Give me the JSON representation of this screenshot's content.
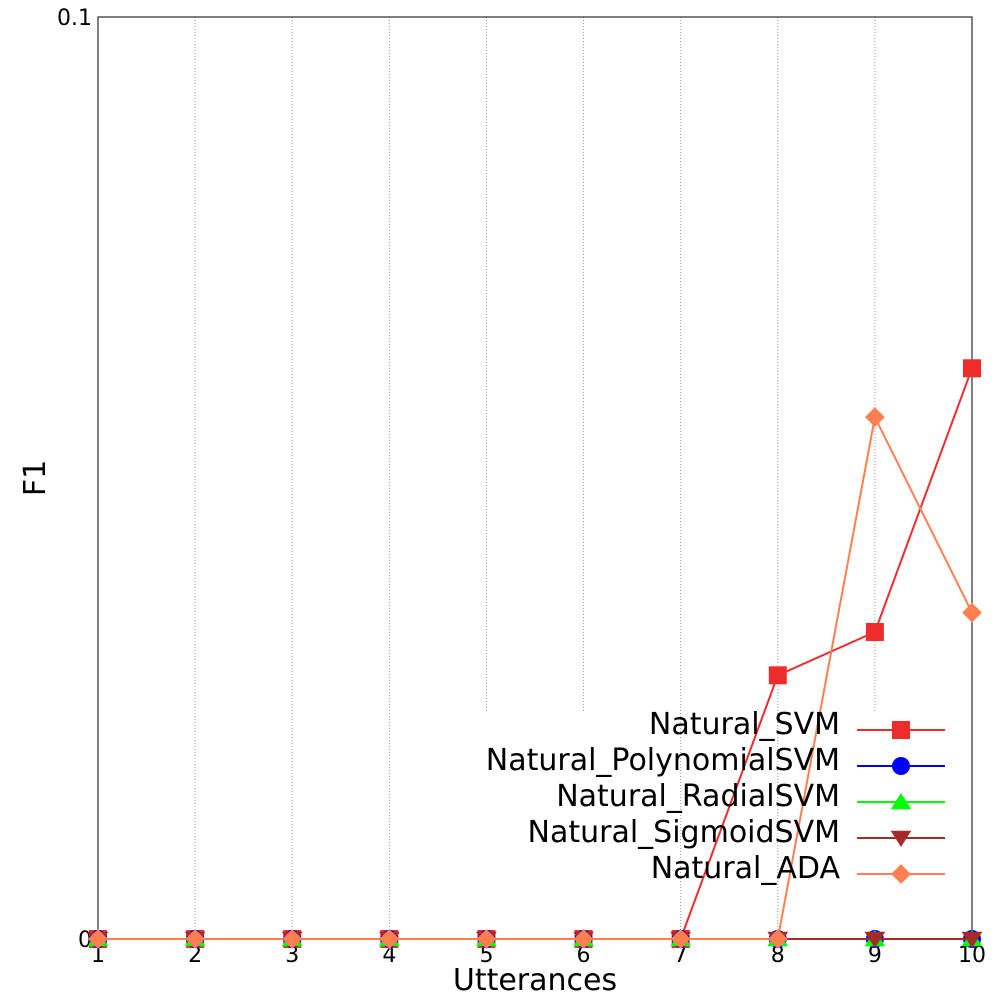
{
  "chart_data": {
    "type": "line",
    "title": "",
    "xlabel": "Utterances",
    "ylabel": "F1",
    "xlim": [
      1,
      10
    ],
    "ylim": [
      0,
      0.1
    ],
    "x": [
      1,
      2,
      3,
      4,
      5,
      6,
      7,
      8,
      9,
      10
    ],
    "x_ticks": [
      "1",
      "2",
      "3",
      "4",
      "5",
      "6",
      "7",
      "8",
      "9",
      "10"
    ],
    "y_ticks": [
      "0",
      "0.1"
    ],
    "grid": "vertical dotted",
    "legend_position": "bottom-right",
    "series": [
      {
        "name": "Natural_SVM",
        "color": "#ee2c2c",
        "marker": "square",
        "values": [
          0,
          0,
          0,
          0,
          0,
          0,
          0,
          0.0286,
          0.0333,
          0.0619
        ]
      },
      {
        "name": "Natural_PolynomialSVM",
        "color": "#0000ff",
        "marker": "circle",
        "values": [
          0,
          0,
          0,
          0,
          0,
          0,
          0,
          0,
          0,
          0
        ]
      },
      {
        "name": "Natural_RadialSVM",
        "color": "#00ff00",
        "marker": "triangle-up",
        "values": [
          0,
          0,
          0,
          0,
          0,
          0,
          0,
          0,
          0,
          0
        ]
      },
      {
        "name": "Natural_SigmoidSVM",
        "color": "#a52a2a",
        "marker": "triangle-down",
        "values": [
          0,
          0,
          0,
          0,
          0,
          0,
          0,
          0,
          0,
          0
        ]
      },
      {
        "name": "Natural_ADA",
        "color": "#ff7f50",
        "marker": "diamond",
        "values": [
          0,
          0,
          0,
          0,
          0,
          0,
          0,
          0,
          0.0566,
          0.0354
        ]
      }
    ]
  }
}
